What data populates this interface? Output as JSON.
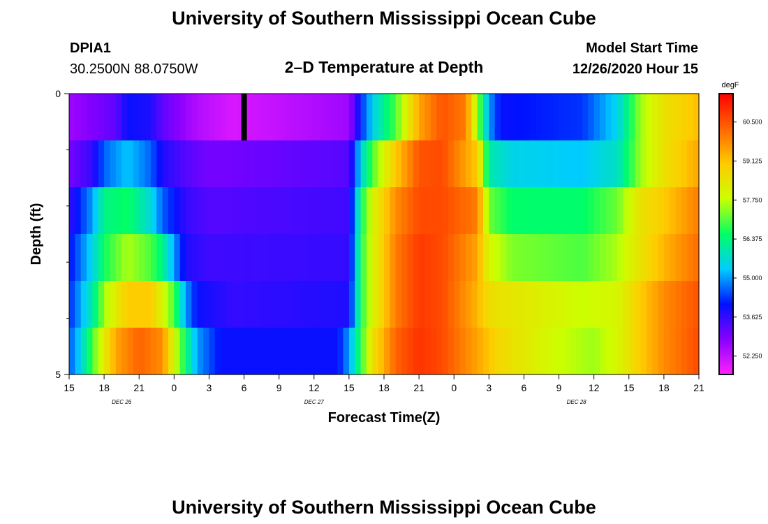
{
  "header": {
    "title": "University of Southern Mississippi Ocean Cube",
    "station": "DPIA1",
    "coords": "30.2500N 88.0750W",
    "subtitle": "2–D Temperature at Depth",
    "model_start_label": "Model Start Time",
    "model_start_value": "12/26/2020 Hour 15"
  },
  "footer": {
    "title": "University of Southern Mississippi Ocean Cube"
  },
  "chart_data": {
    "type": "heatmap",
    "title": "2–D Temperature at Depth",
    "xlabel": "Forecast Time(Z)",
    "ylabel": "Depth (ft)",
    "x_tick_labels": [
      "15",
      "18",
      "21",
      "0",
      "3",
      "6",
      "9",
      "12",
      "15",
      "18",
      "21",
      "0",
      "3",
      "6",
      "9",
      "12",
      "15",
      "18",
      "21"
    ],
    "date_labels": [
      {
        "text": "DEC  26",
        "tick": 1.5
      },
      {
        "text": "DEC  27",
        "tick": 7
      },
      {
        "text": "DEC  28",
        "tick": 14.5
      }
    ],
    "y_tick_labels": {
      "top": "0",
      "bottom": "5"
    },
    "y_minor_ticks": 4,
    "x_range_hours": [
      0,
      54
    ],
    "colorbar": {
      "unit": "degF",
      "labels": [
        "60.500",
        "59.125",
        "57.750",
        "56.375",
        "55.000",
        "53.625",
        "52.250"
      ],
      "range": [
        51.6,
        61.5
      ],
      "colors": [
        "#ff22ff",
        "#8800ff",
        "#0011ff",
        "#00ccff",
        "#00ff66",
        "#ccff00",
        "#ffcc00",
        "#ff6600",
        "#ff0000"
      ]
    },
    "current_time_marker_hour": 15,
    "rows": [
      {
        "depth_band": "0",
        "keys": [
          [
            0,
            52.6
          ],
          [
            4,
            53.2
          ],
          [
            5,
            54.0
          ],
          [
            7,
            53.8
          ],
          [
            8,
            53.2
          ],
          [
            11,
            52.4
          ],
          [
            14,
            52.0
          ],
          [
            24,
            52.6
          ],
          [
            25,
            54.2
          ],
          [
            26,
            55.4
          ],
          [
            28,
            57.0
          ],
          [
            30,
            59.5
          ],
          [
            32,
            60.5
          ],
          [
            34,
            60.0
          ],
          [
            35,
            57.5
          ],
          [
            36,
            55.0
          ],
          [
            37,
            54.0
          ],
          [
            44,
            54.3
          ],
          [
            47,
            55.5
          ],
          [
            49,
            57.5
          ],
          [
            51,
            58.5
          ],
          [
            54,
            59.2
          ]
        ]
      },
      {
        "depth_band": "1",
        "keys": [
          [
            0,
            53.0
          ],
          [
            2,
            53.6
          ],
          [
            3,
            54.6
          ],
          [
            5,
            55.3
          ],
          [
            7,
            54.6
          ],
          [
            8,
            53.8
          ],
          [
            10,
            53.3
          ],
          [
            12,
            53.0
          ],
          [
            24,
            53.3
          ],
          [
            25,
            55.5
          ],
          [
            26,
            57.0
          ],
          [
            28,
            59.0
          ],
          [
            30,
            60.5
          ],
          [
            32,
            60.6
          ],
          [
            35,
            59.0
          ],
          [
            36,
            56.0
          ],
          [
            38,
            55.5
          ],
          [
            44,
            55.3
          ],
          [
            47,
            55.8
          ],
          [
            49,
            57.5
          ],
          [
            51,
            58.5
          ],
          [
            54,
            59.5
          ]
        ]
      },
      {
        "depth_band": "2",
        "keys": [
          [
            0,
            53.6
          ],
          [
            2,
            55.0
          ],
          [
            3,
            56.3
          ],
          [
            5,
            56.6
          ],
          [
            7,
            55.6
          ],
          [
            8,
            54.6
          ],
          [
            10,
            53.6
          ],
          [
            12,
            53.3
          ],
          [
            24,
            53.5
          ],
          [
            25,
            56.5
          ],
          [
            26,
            58.0
          ],
          [
            28,
            59.8
          ],
          [
            30,
            60.6
          ],
          [
            32,
            60.6
          ],
          [
            35,
            60.0
          ],
          [
            36,
            57.2
          ],
          [
            38,
            56.5
          ],
          [
            44,
            56.5
          ],
          [
            47,
            57.2
          ],
          [
            49,
            58.5
          ],
          [
            51,
            59.0
          ],
          [
            54,
            60.0
          ]
        ]
      },
      {
        "depth_band": "3",
        "keys": [
          [
            0,
            54.0
          ],
          [
            2,
            55.5
          ],
          [
            3,
            56.6
          ],
          [
            5,
            57.6
          ],
          [
            7,
            57.0
          ],
          [
            8,
            56.3
          ],
          [
            9,
            55.0
          ],
          [
            10,
            53.8
          ],
          [
            12,
            53.5
          ],
          [
            24,
            53.6
          ],
          [
            25,
            56.7
          ],
          [
            26,
            58.0
          ],
          [
            28,
            60.0
          ],
          [
            30,
            60.8
          ],
          [
            32,
            60.6
          ],
          [
            35,
            59.5
          ],
          [
            36,
            58.0
          ],
          [
            38,
            57.3
          ],
          [
            44,
            57.0
          ],
          [
            47,
            57.6
          ],
          [
            49,
            58.5
          ],
          [
            51,
            59.3
          ],
          [
            54,
            60.2
          ]
        ]
      },
      {
        "depth_band": "4",
        "keys": [
          [
            0,
            54.2
          ],
          [
            2,
            56.0
          ],
          [
            3,
            57.5
          ],
          [
            5,
            59.0
          ],
          [
            7,
            59.0
          ],
          [
            8,
            58.0
          ],
          [
            9,
            57.0
          ],
          [
            10,
            55.0
          ],
          [
            11,
            54.0
          ],
          [
            14,
            53.6
          ],
          [
            24,
            53.8
          ],
          [
            25,
            56.7
          ],
          [
            26,
            58.0
          ],
          [
            28,
            60.0
          ],
          [
            30,
            60.8
          ],
          [
            32,
            60.6
          ],
          [
            35,
            59.3
          ],
          [
            36,
            58.6
          ],
          [
            38,
            58.4
          ],
          [
            44,
            57.8
          ],
          [
            47,
            58.0
          ],
          [
            49,
            59.0
          ],
          [
            51,
            59.8
          ],
          [
            54,
            60.5
          ]
        ]
      },
      {
        "depth_band": "5",
        "keys": [
          [
            0,
            54.5
          ],
          [
            1,
            55.5
          ],
          [
            2,
            57.0
          ],
          [
            4,
            59.5
          ],
          [
            6,
            60.3
          ],
          [
            8,
            59.8
          ],
          [
            9,
            58.0
          ],
          [
            10,
            56.5
          ],
          [
            11,
            55.0
          ],
          [
            13,
            54.0
          ],
          [
            23,
            54.0
          ],
          [
            24,
            55.0
          ],
          [
            25,
            56.8
          ],
          [
            26,
            58.5
          ],
          [
            28,
            60.3
          ],
          [
            30,
            60.9
          ],
          [
            32,
            60.6
          ],
          [
            35,
            59.5
          ],
          [
            37,
            58.7
          ],
          [
            42,
            57.8
          ],
          [
            45,
            57.5
          ],
          [
            47,
            58.0
          ],
          [
            49,
            59.0
          ],
          [
            51,
            59.8
          ],
          [
            54,
            60.6
          ]
        ]
      }
    ]
  }
}
